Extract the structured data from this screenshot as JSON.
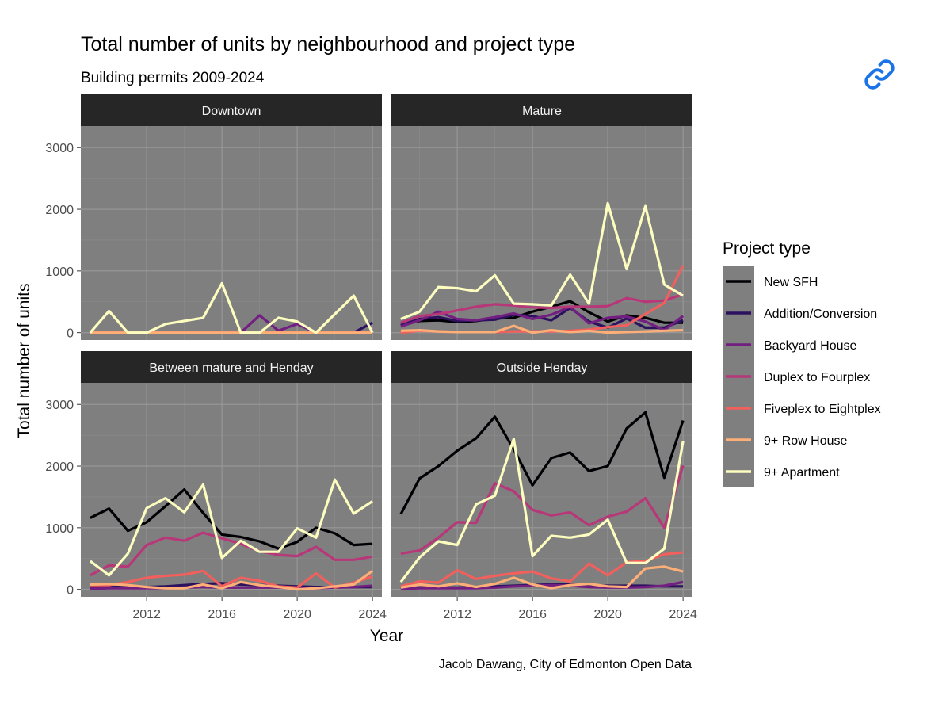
{
  "link_icon": "link-icon",
  "chart_data": {
    "type": "line",
    "title": "Total number of units by neighbourhood and project type",
    "subtitle": "Building permits 2009-2024",
    "xlabel": "Year",
    "ylabel": "Total number of units",
    "caption": "Jacob Dawang, City of Edmonton Open Data",
    "legend_title": "Project type",
    "legend_position": "right",
    "grid": true,
    "panel_background": "#7f7f7f",
    "strip_background": "#262626",
    "xlim": [
      2008.5,
      2024.5
    ],
    "ylim": [
      -120,
      3350
    ],
    "x_ticks": [
      2012,
      2016,
      2020,
      2024
    ],
    "y_ticks": [
      0,
      1000,
      2000,
      3000
    ],
    "x": [
      2009,
      2010,
      2011,
      2012,
      2013,
      2014,
      2015,
      2016,
      2017,
      2018,
      2019,
      2020,
      2021,
      2022,
      2023,
      2024
    ],
    "series_styles": [
      {
        "name": "New SFH",
        "color": "#000004"
      },
      {
        "name": "Addition/Conversion",
        "color": "#2c115f"
      },
      {
        "name": "Backyard House",
        "color": "#721f81"
      },
      {
        "name": "Duplex to Fourplex",
        "color": "#b73779"
      },
      {
        "name": "Fiveplex to Eightplex",
        "color": "#f1605d"
      },
      {
        "name": "9+ Row House",
        "color": "#feaf77"
      },
      {
        "name": "9+ Apartment",
        "color": "#fcfdbf"
      }
    ],
    "panels": [
      {
        "label": "Downtown",
        "series": [
          {
            "name": "New SFH",
            "values": [
              0,
              0,
              0,
              0,
              0,
              0,
              0,
              0,
              0,
              0,
              0,
              0,
              0,
              0,
              0,
              0
            ]
          },
          {
            "name": "Addition/Conversion",
            "values": [
              0,
              0,
              0,
              0,
              0,
              0,
              0,
              0,
              0,
              0,
              0,
              0,
              0,
              0,
              0,
              160
            ]
          },
          {
            "name": "Backyard House",
            "values": [
              0,
              0,
              0,
              0,
              0,
              0,
              0,
              0,
              0,
              280,
              30,
              140,
              0,
              0,
              0,
              0
            ]
          },
          {
            "name": "Duplex to Fourplex",
            "values": [
              0,
              0,
              0,
              0,
              0,
              0,
              0,
              0,
              0,
              0,
              0,
              0,
              0,
              0,
              0,
              0
            ]
          },
          {
            "name": "Fiveplex to Eightplex",
            "values": [
              0,
              0,
              0,
              0,
              0,
              0,
              0,
              0,
              0,
              0,
              0,
              0,
              0,
              0,
              0,
              0
            ]
          },
          {
            "name": "9+ Row House",
            "values": [
              0,
              0,
              0,
              0,
              0,
              0,
              0,
              0,
              0,
              0,
              0,
              0,
              0,
              0,
              0,
              0
            ]
          },
          {
            "name": "9+ Apartment",
            "values": [
              0,
              350,
              0,
              0,
              140,
              190,
              240,
              800,
              0,
              0,
              240,
              180,
              0,
              300,
              600,
              0
            ]
          }
        ]
      },
      {
        "label": "Mature",
        "series": [
          {
            "name": "New SFH",
            "values": [
              120,
              190,
              200,
              170,
              190,
              230,
              240,
              340,
              420,
              510,
              330,
              180,
              280,
              240,
              160,
              160
            ]
          },
          {
            "name": "Addition/Conversion",
            "values": [
              120,
              220,
              250,
              190,
              200,
              210,
              290,
              270,
              200,
              400,
              180,
              80,
              230,
              80,
              80,
              200
            ]
          },
          {
            "name": "Backyard House",
            "values": [
              100,
              200,
              340,
              220,
              200,
              250,
              310,
              220,
              290,
              420,
              150,
              240,
              260,
              180,
              40,
              270
            ]
          },
          {
            "name": "Duplex to Fourplex",
            "values": [
              160,
              270,
              300,
              360,
              420,
              460,
              440,
              410,
              400,
              420,
              420,
              430,
              560,
              500,
              520,
              620
            ]
          },
          {
            "name": "Fiveplex to Eightplex",
            "values": [
              0,
              30,
              20,
              10,
              10,
              10,
              20,
              20,
              20,
              30,
              50,
              90,
              120,
              300,
              480,
              1090
            ]
          },
          {
            "name": "9+ Row House",
            "values": [
              30,
              40,
              20,
              10,
              10,
              10,
              110,
              0,
              40,
              10,
              30,
              0,
              10,
              20,
              30,
              40
            ]
          },
          {
            "name": "9+ Apartment",
            "values": [
              220,
              340,
              740,
              720,
              670,
              930,
              470,
              460,
              440,
              940,
              470,
              2100,
              1030,
              2050,
              780,
              600
            ]
          }
        ]
      },
      {
        "label": "Between mature and Henday",
        "series": [
          {
            "name": "New SFH",
            "values": [
              1160,
              1310,
              950,
              1090,
              1350,
              1620,
              1240,
              890,
              850,
              780,
              660,
              770,
              1000,
              910,
              720,
              740
            ]
          },
          {
            "name": "Addition/Conversion",
            "values": [
              50,
              40,
              40,
              40,
              50,
              70,
              90,
              100,
              80,
              70,
              60,
              50,
              40,
              40,
              40,
              40
            ]
          },
          {
            "name": "Backyard House",
            "values": [
              10,
              20,
              20,
              20,
              20,
              30,
              40,
              30,
              30,
              30,
              30,
              20,
              20,
              30,
              40,
              60
            ]
          },
          {
            "name": "Duplex to Fourplex",
            "values": [
              230,
              390,
              370,
              720,
              840,
              790,
              920,
              830,
              740,
              620,
              560,
              540,
              690,
              480,
              480,
              530
            ]
          },
          {
            "name": "Fiveplex to Eightplex",
            "values": [
              70,
              70,
              120,
              190,
              220,
              240,
              300,
              50,
              190,
              140,
              50,
              30,
              260,
              30,
              110,
              210
            ]
          },
          {
            "name": "9+ Row House",
            "values": [
              80,
              90,
              70,
              40,
              20,
              20,
              80,
              20,
              120,
              70,
              40,
              0,
              20,
              50,
              80,
              300
            ]
          },
          {
            "name": "9+ Apartment",
            "values": [
              460,
              230,
              580,
              1320,
              1480,
              1250,
              1700,
              510,
              790,
              610,
              610,
              990,
              840,
              1780,
              1230,
              1430
            ]
          }
        ]
      },
      {
        "label": "Outside Henday",
        "series": [
          {
            "name": "New SFH",
            "values": [
              1220,
              1800,
              2000,
              2250,
              2450,
              2800,
              2270,
              1690,
              2130,
              2220,
              1920,
              2000,
              2610,
              2870,
              1810,
              2740
            ]
          },
          {
            "name": "Addition/Conversion",
            "values": [
              20,
              30,
              30,
              30,
              40,
              50,
              60,
              70,
              80,
              80,
              70,
              60,
              60,
              60,
              50,
              50
            ]
          },
          {
            "name": "Backyard House",
            "values": [
              10,
              20,
              20,
              20,
              20,
              30,
              50,
              60,
              70,
              60,
              40,
              30,
              30,
              40,
              60,
              120
            ]
          },
          {
            "name": "Duplex to Fourplex",
            "values": [
              580,
              630,
              840,
              1090,
              1080,
              1720,
              1590,
              1290,
              1200,
              1250,
              1040,
              1180,
              1260,
              1480,
              1000,
              2010
            ]
          },
          {
            "name": "Fiveplex to Eightplex",
            "values": [
              50,
              130,
              110,
              310,
              170,
              220,
              260,
              290,
              180,
              130,
              420,
              230,
              440,
              460,
              570,
              600
            ]
          },
          {
            "name": "9+ Row House",
            "values": [
              30,
              80,
              50,
              100,
              40,
              90,
              190,
              80,
              20,
              70,
              90,
              50,
              40,
              340,
              370,
              290
            ]
          },
          {
            "name": "9+ Apartment",
            "values": [
              120,
              520,
              780,
              720,
              1380,
              1520,
              2440,
              540,
              870,
              840,
              890,
              1130,
              430,
              430,
              660,
              2400
            ]
          }
        ]
      }
    ]
  }
}
